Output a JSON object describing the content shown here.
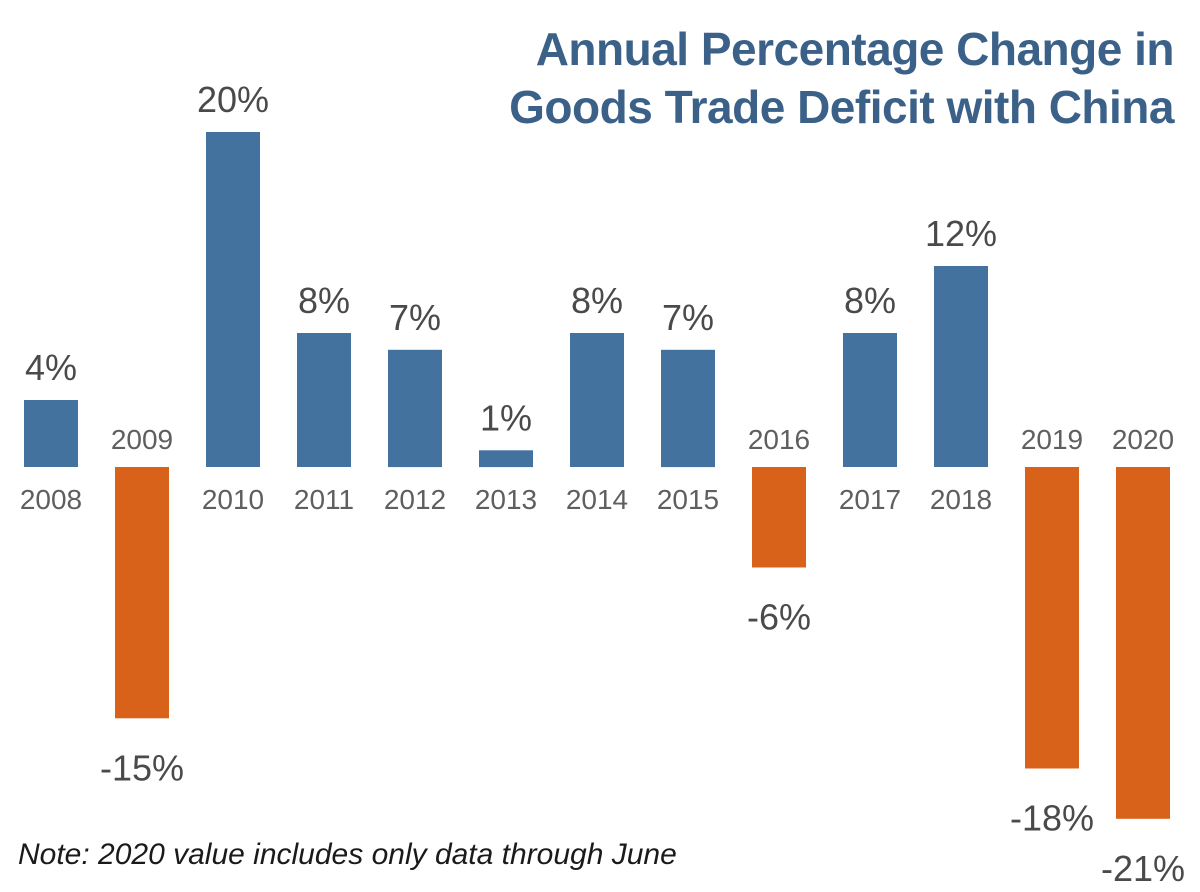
{
  "chart_data": {
    "type": "bar",
    "title_lines": [
      "Annual Percentage Change in",
      "Goods Trade Deficit with China"
    ],
    "categories": [
      "2008",
      "2009",
      "2010",
      "2011",
      "2012",
      "2013",
      "2014",
      "2015",
      "2016",
      "2017",
      "2018",
      "2019",
      "2020"
    ],
    "values": [
      4,
      -15,
      20,
      8,
      7,
      1,
      8,
      7,
      -6,
      8,
      12,
      -18,
      -21
    ],
    "value_labels": [
      "4%",
      "-15%",
      "20%",
      "8%",
      "7%",
      "1%",
      "8%",
      "7%",
      "-6%",
      "8%",
      "12%",
      "-18%",
      "-21%"
    ],
    "xlabel": "",
    "ylabel": "",
    "ylim": [
      -21,
      20
    ],
    "grid": false,
    "legend": "none",
    "colors": {
      "positive": "#44729e",
      "negative": "#d86219",
      "title": "#3b6189"
    }
  },
  "note": "Note: 2020 value includes only data through June"
}
